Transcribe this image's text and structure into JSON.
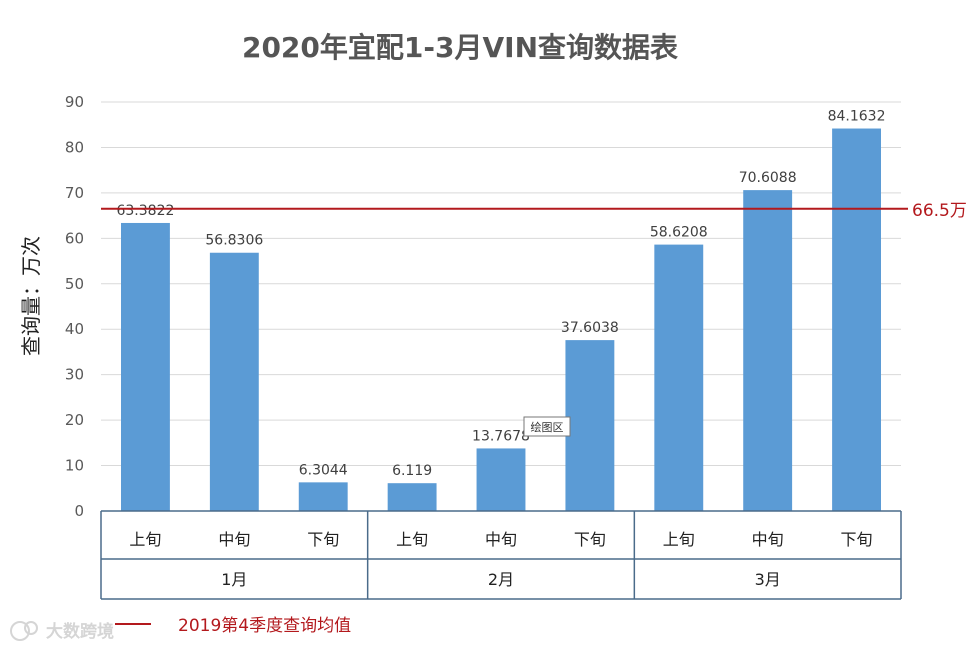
{
  "chart_data": {
    "type": "bar",
    "title": "2020年宜配1-3月VIN查询数据表",
    "ylabel": "查询量：万次",
    "xlabel": "",
    "ylim": [
      0,
      90
    ],
    "yticks": [
      0,
      10,
      20,
      30,
      40,
      50,
      60,
      70,
      80,
      90
    ],
    "grid": true,
    "bar_color": "#5b9bd5",
    "categories": [
      "上旬",
      "中旬",
      "下旬",
      "上旬",
      "中旬",
      "下旬",
      "上旬",
      "中旬",
      "下旬"
    ],
    "category_groups": [
      {
        "label": "1月",
        "count": 3
      },
      {
        "label": "2月",
        "count": 3
      },
      {
        "label": "3月",
        "count": 3
      }
    ],
    "values": [
      63.3822,
      56.8306,
      6.3044,
      6.119,
      13.7678,
      37.6038,
      58.6208,
      70.6088,
      84.1632
    ],
    "value_labels": [
      "63.3822",
      "56.8306",
      "6.3044",
      "6.119",
      "13.7678",
      "37.6038",
      "58.6208",
      "70.6088",
      "84.1632"
    ],
    "reference_line": {
      "value": 66.5,
      "label": "66.5万",
      "color": "#b3191d",
      "legend_label": "2019第4季度查询均值"
    }
  },
  "tooltip": "绘图区",
  "watermark": "大数跨境"
}
